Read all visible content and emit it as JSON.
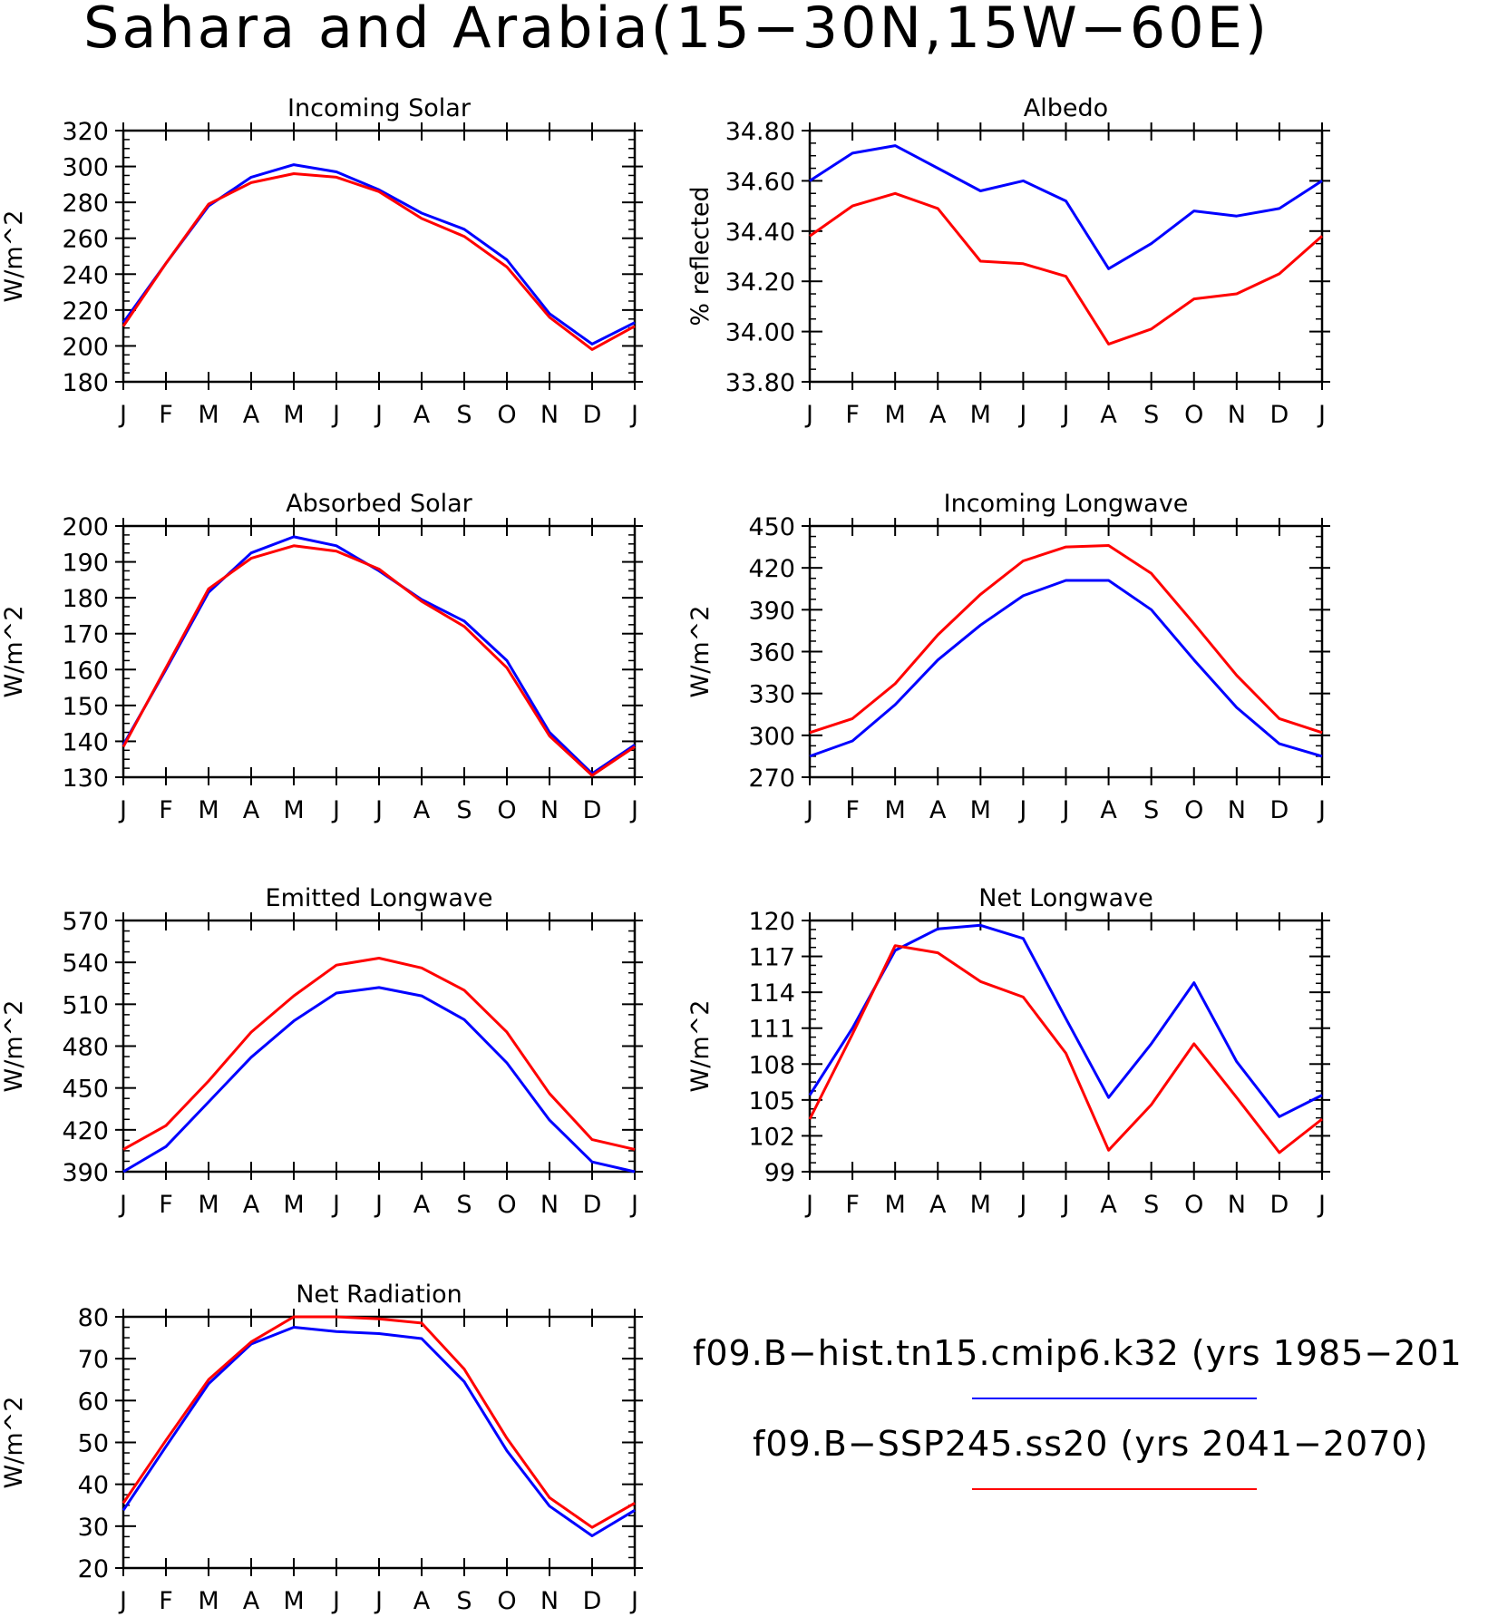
{
  "title": "Sahara and Arabia(15−30N,15W−60E)",
  "months": [
    "J",
    "F",
    "M",
    "A",
    "M",
    "J",
    "J",
    "A",
    "S",
    "O",
    "N",
    "D",
    "J"
  ],
  "legend": [
    {
      "label": "f09.B−hist.tn15.cmip6.k32 (yrs 1985−201",
      "color": "#0000ff"
    },
    {
      "label": "f09.B−SSP245.ss20 (yrs 2041−2070)",
      "color": "#ff0000"
    }
  ],
  "colors": {
    "hist": "#0000ff",
    "ssp": "#ff0000"
  },
  "chart_data": [
    {
      "type": "line",
      "title": "Incoming Solar",
      "ylabel": "W/m^2",
      "ylim": [
        180,
        320
      ],
      "yticks": [
        "180",
        "200",
        "220",
        "240",
        "260",
        "280",
        "300",
        "320"
      ],
      "series": [
        {
          "color": "#0000ff",
          "values": [
            213,
            246,
            278,
            294,
            301,
            297,
            287,
            274,
            265,
            248,
            218,
            201,
            213
          ]
        },
        {
          "color": "#ff0000",
          "values": [
            211,
            246,
            279,
            291,
            296,
            294,
            286,
            271,
            261,
            244,
            216,
            198,
            211
          ]
        }
      ]
    },
    {
      "type": "line",
      "title": "Albedo",
      "ylabel": "% reflected",
      "ylim": [
        33.8,
        34.8
      ],
      "yticks": [
        "33.80",
        "34.00",
        "34.20",
        "34.40",
        "34.60",
        "34.80"
      ],
      "series": [
        {
          "color": "#0000ff",
          "values": [
            34.6,
            34.71,
            34.74,
            34.65,
            34.56,
            34.6,
            34.52,
            34.25,
            34.35,
            34.48,
            34.46,
            34.49,
            34.6
          ]
        },
        {
          "color": "#ff0000",
          "values": [
            34.38,
            34.5,
            34.55,
            34.49,
            34.28,
            34.27,
            34.22,
            33.95,
            34.01,
            34.13,
            34.15,
            34.23,
            34.38
          ]
        }
      ]
    },
    {
      "type": "line",
      "title": "Absorbed Solar",
      "ylabel": "W/m^2",
      "ylim": [
        130,
        200
      ],
      "yticks": [
        "130",
        "140",
        "150",
        "160",
        "170",
        "180",
        "190",
        "200"
      ],
      "series": [
        {
          "color": "#0000ff",
          "values": [
            139,
            160,
            181.5,
            192.5,
            197,
            194.5,
            187.5,
            179.5,
            173.5,
            162.5,
            142.5,
            131,
            139
          ]
        },
        {
          "color": "#ff0000",
          "values": [
            138.5,
            160.5,
            182.5,
            191,
            194.5,
            193,
            188,
            179,
            172,
            160.5,
            141.5,
            130.5,
            138.5
          ]
        }
      ]
    },
    {
      "type": "line",
      "title": "Incoming Longwave",
      "ylabel": "W/m^2",
      "ylim": [
        270,
        450
      ],
      "yticks": [
        "270",
        "300",
        "330",
        "360",
        "390",
        "420",
        "450"
      ],
      "series": [
        {
          "color": "#0000ff",
          "values": [
            285,
            296,
            322,
            354,
            379,
            400,
            411,
            411,
            390,
            354,
            320,
            294,
            285
          ]
        },
        {
          "color": "#ff0000",
          "values": [
            302,
            312,
            337,
            372,
            401,
            425,
            435,
            436,
            416,
            380,
            343,
            312,
            302
          ]
        }
      ]
    },
    {
      "type": "line",
      "title": "Emitted Longwave",
      "ylabel": "W/m^2",
      "ylim": [
        390,
        570
      ],
      "yticks": [
        "390",
        "420",
        "450",
        "480",
        "510",
        "540",
        "570"
      ],
      "series": [
        {
          "color": "#0000ff",
          "values": [
            390,
            408,
            440,
            472,
            498,
            518,
            522,
            516,
            499,
            468,
            427,
            397,
            390
          ]
        },
        {
          "color": "#ff0000",
          "values": [
            406,
            423,
            455,
            490,
            516,
            538,
            543,
            536,
            520,
            490,
            446,
            413,
            406
          ]
        }
      ]
    },
    {
      "type": "line",
      "title": "Net Longwave",
      "ylabel": "W/m^2",
      "ylim": [
        99,
        120
      ],
      "yticks": [
        "99",
        "102",
        "105",
        "108",
        "111",
        "114",
        "117",
        "120"
      ],
      "series": [
        {
          "color": "#0000ff",
          "values": [
            105.4,
            111,
            117.5,
            119.3,
            119.6,
            118.5,
            111.8,
            105.2,
            109.7,
            114.8,
            108.2,
            103.6,
            105.4
          ]
        },
        {
          "color": "#ff0000",
          "values": [
            103.4,
            110.5,
            117.9,
            117.3,
            114.9,
            113.6,
            108.9,
            100.8,
            104.6,
            109.7,
            105.2,
            100.6,
            103.4
          ]
        }
      ]
    },
    {
      "type": "line",
      "title": "Net Radiation",
      "ylabel": "W/m^2",
      "ylim": [
        20,
        80
      ],
      "yticks": [
        "20",
        "30",
        "40",
        "50",
        "60",
        "70",
        "80"
      ],
      "series": [
        {
          "color": "#0000ff",
          "values": [
            33.8,
            49,
            64,
            73.5,
            77.5,
            76.5,
            76,
            74.8,
            64.5,
            48,
            34.8,
            27.7,
            33.8
          ]
        },
        {
          "color": "#ff0000",
          "values": [
            35.5,
            50.5,
            65,
            74,
            80,
            80,
            79.5,
            78.5,
            67.5,
            51,
            36.8,
            29.7,
            35.5
          ]
        }
      ]
    }
  ]
}
